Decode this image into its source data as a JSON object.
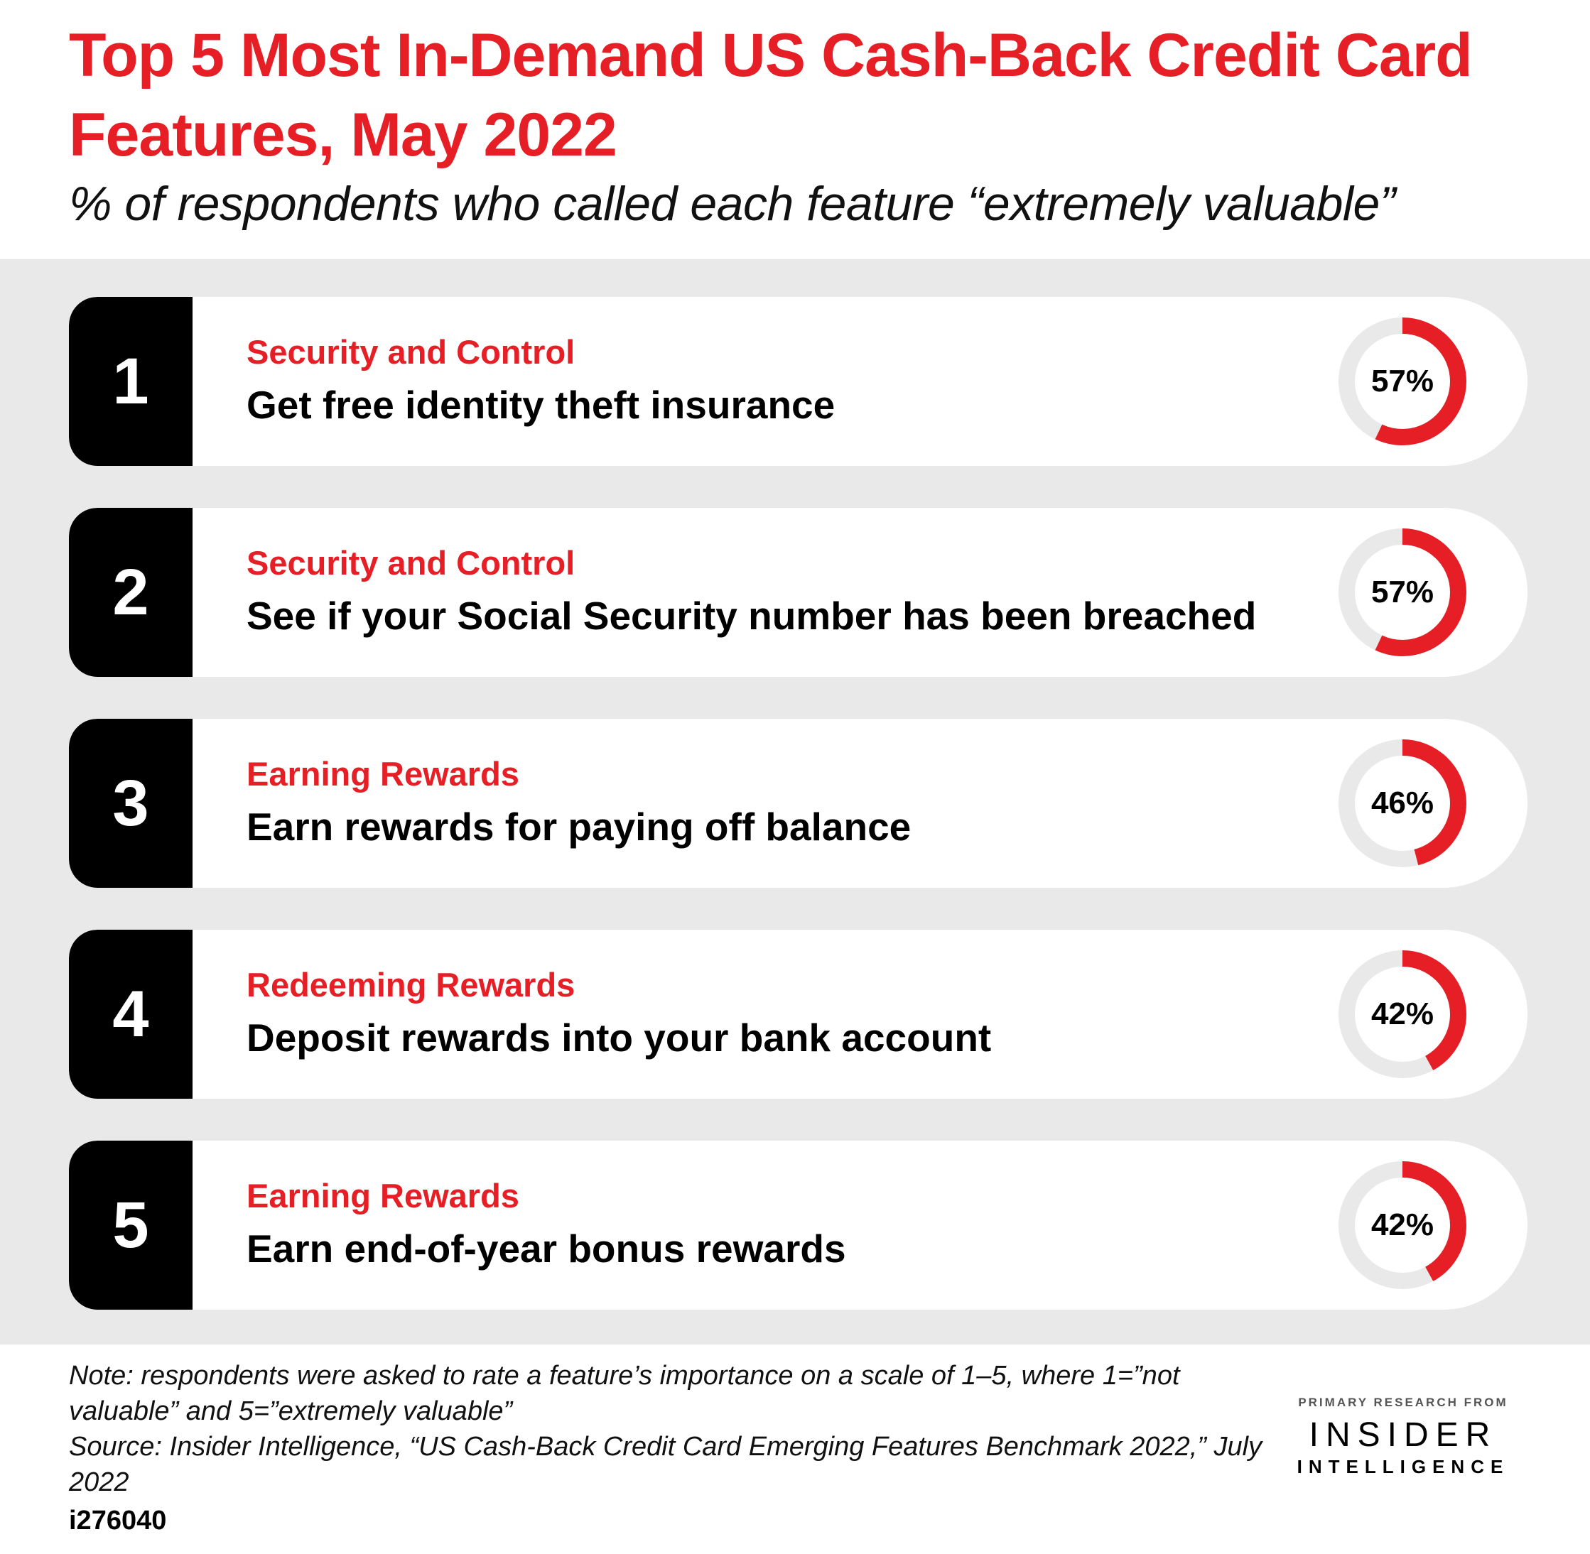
{
  "title": "Top 5 Most In-Demand US Cash-Back Credit Card Features, May 2022",
  "subtitle": "% of respondents who called each feature “extremely valuable”",
  "colors": {
    "accent": "#e61e25",
    "track": "#e9e9e9",
    "background_band": "#e9e9e9"
  },
  "chart_data": {
    "type": "ranked-list-donut",
    "unit": "%",
    "items": [
      {
        "rank": "1",
        "category": "Security and Control",
        "feature": "Get free identity theft insurance",
        "value": 57,
        "label": "57%"
      },
      {
        "rank": "2",
        "category": "Security and Control",
        "feature": "See if your Social Security number has been breached",
        "value": 57,
        "label": "57%"
      },
      {
        "rank": "3",
        "category": "Earning Rewards",
        "feature": "Earn rewards for paying off balance",
        "value": 46,
        "label": "46%"
      },
      {
        "rank": "4",
        "category": "Redeeming Rewards",
        "feature": "Deposit rewards into your bank account",
        "value": 42,
        "label": "42%"
      },
      {
        "rank": "5",
        "category": "Earning Rewards",
        "feature": "Earn end-of-year bonus rewards",
        "value": 42,
        "label": "42%"
      }
    ]
  },
  "footer": {
    "note": "Note: respondents were asked to rate a feature’s importance on a scale of 1–5, where 1=”not valuable” and 5=”extremely valuable”",
    "source": "Source: Insider Intelligence, “US Cash-Back Credit Card Emerging Features Benchmark 2022,” July 2022",
    "chart_id": "i276040"
  },
  "logo": {
    "line1": "PRIMARY RESEARCH FROM",
    "line2": "INSIDER",
    "line3": "INTELLIGENCE"
  }
}
